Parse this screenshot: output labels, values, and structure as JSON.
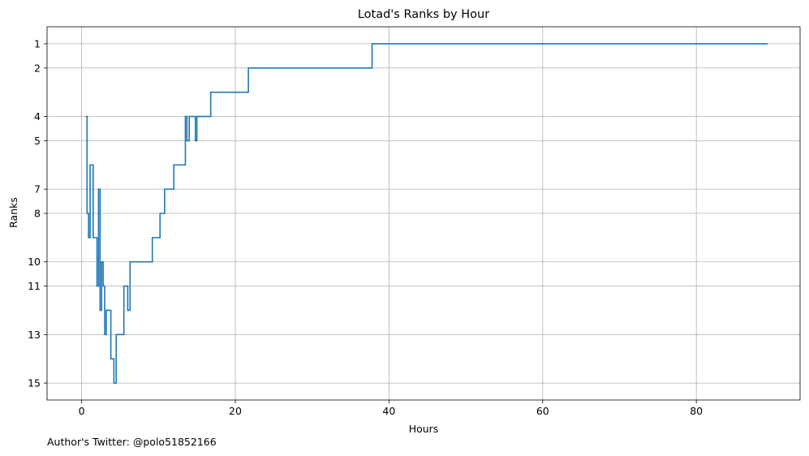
{
  "chart_data": {
    "type": "line",
    "title": "Lotad's Ranks by Hour",
    "xlabel": "Hours",
    "ylabel": "Ranks",
    "xlim": [
      -4.5,
      93.5
    ],
    "ylim": [
      15.7,
      0.3
    ],
    "y_inverted": true,
    "xticks": [
      0,
      20,
      40,
      60,
      80
    ],
    "yticks": [
      1,
      2,
      4,
      5,
      7,
      8,
      10,
      11,
      13,
      15
    ],
    "grid": true,
    "line_color": "#1f77b4",
    "step": "post",
    "series": [
      {
        "x": [
          0.5,
          0.7,
          0.9,
          1.1,
          1.5,
          2.0,
          2.2,
          2.4,
          2.6,
          2.8,
          3.0,
          3.2,
          3.8,
          4.2,
          4.5,
          5.5,
          6.0,
          6.3,
          9.2,
          10.2,
          10.8,
          12.0,
          13.5,
          13.7,
          14.0,
          14.8,
          15.0,
          15.3,
          16.8,
          21.7,
          37.8,
          89.3
        ],
        "y": [
          4,
          8,
          9,
          6,
          9,
          11,
          7,
          12,
          10,
          11,
          13,
          12,
          14,
          15,
          13,
          11,
          12,
          10,
          9,
          8,
          7,
          6,
          4,
          5,
          4,
          5,
          4,
          4,
          3,
          2,
          1,
          1
        ]
      }
    ]
  },
  "footnote": "Author's Twitter: @polo51852166"
}
